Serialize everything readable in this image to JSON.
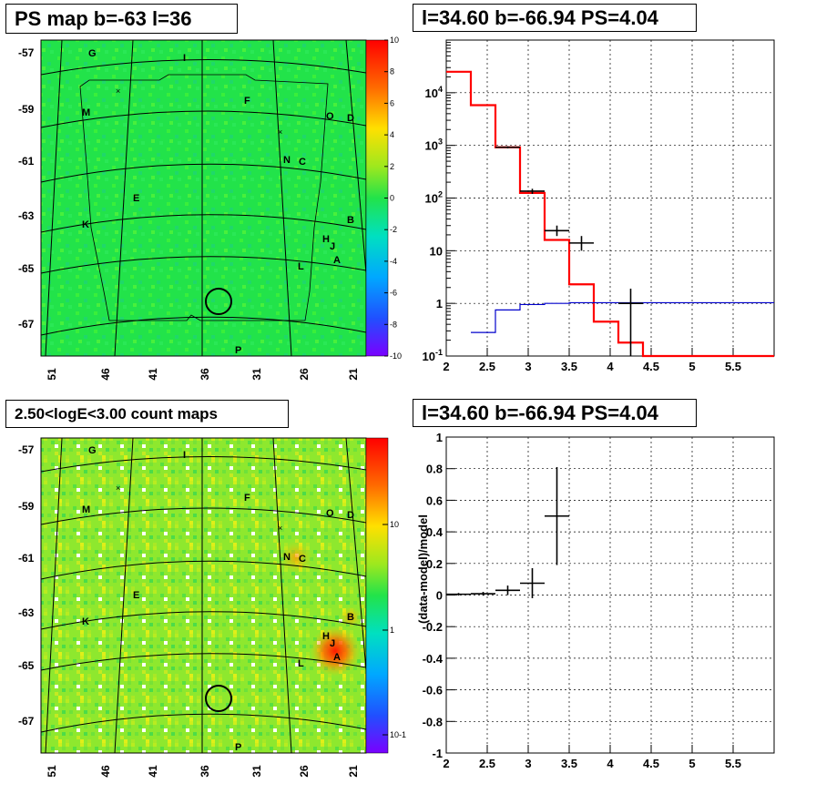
{
  "panels": {
    "ps_map": {
      "title": "PS map b=-63 l=36",
      "colorbar_ticks": [
        "10",
        "8",
        "6",
        "4",
        "2",
        "0",
        "-2",
        "-4",
        "-6",
        "-8",
        "-10"
      ],
      "lat_labels": [
        "-57",
        "-59",
        "-61",
        "-63",
        "-65",
        "-67"
      ],
      "lon_labels": [
        "51",
        "46",
        "41",
        "36",
        "31",
        "26",
        "21"
      ]
    },
    "count_map": {
      "title": "2.50<logE<3.00 count maps",
      "colorbar_ticks": [
        "10",
        "1",
        "10-1"
      ],
      "lat_labels": [
        "-57",
        "-59",
        "-61",
        "-63",
        "-65",
        "-67"
      ],
      "lon_labels": [
        "51",
        "46",
        "41",
        "36",
        "31",
        "26",
        "21"
      ]
    },
    "spectrum": {
      "title": "l=34.60 b=-66.94 PS=4.04"
    },
    "residual": {
      "title": "l=34.60 b=-66.94 PS=4.04",
      "ylabel": "(data-model)/model"
    }
  },
  "source_labels": [
    "G",
    "I",
    "M",
    "F",
    "O",
    "D",
    "N",
    "C",
    "E",
    "K",
    "B",
    "H",
    "J",
    "L",
    "A",
    "P"
  ],
  "chart_data": [
    {
      "type": "heatmap",
      "title": "PS map b=-63 l=36",
      "xlabel": "",
      "ylabel": "",
      "x_ticks": [
        51,
        46,
        41,
        36,
        31,
        26,
        21
      ],
      "y_ticks": [
        -57,
        -59,
        -61,
        -63,
        -65,
        -67
      ],
      "zlim": [
        -10,
        10
      ],
      "marked_position": {
        "l": 34.6,
        "b": -66.94
      }
    },
    {
      "type": "heatmap",
      "title": "2.50<logE<3.00 count maps",
      "xlabel": "",
      "ylabel": "",
      "x_ticks": [
        51,
        46,
        41,
        36,
        31,
        26,
        21
      ],
      "y_ticks": [
        -57,
        -59,
        -61,
        -63,
        -65,
        -67
      ],
      "zscale": "log",
      "marked_position": {
        "l": 34.6,
        "b": -66.94
      }
    },
    {
      "type": "line",
      "title": "l=34.60 b=-66.94 PS=4.04",
      "xlabel": "",
      "ylabel": "",
      "xlim": [
        2,
        6
      ],
      "ylim": [
        0.1,
        100000
      ],
      "yscale": "log",
      "grid": true,
      "x_ticks": [
        "2",
        "2.5",
        "3",
        "3.5",
        "4",
        "4.5",
        "5",
        "5.5"
      ],
      "y_ticks": [
        "10^-1",
        "1",
        "10",
        "10^2",
        "10^3",
        "10^4"
      ],
      "series": [
        {
          "color": "#ff0000",
          "bin_edges": [
            2.0,
            2.3,
            2.6,
            2.9,
            3.2,
            3.5,
            3.8,
            4.1,
            4.4,
            6.0
          ],
          "values": [
            25000,
            5800,
            920,
            125,
            16,
            2.3,
            0.45,
            0.18,
            0.1
          ]
        },
        {
          "color": "#0000cc",
          "bin_edges": [
            2.3,
            2.6,
            2.9,
            3.2,
            3.5,
            6.0
          ],
          "values": [
            0.28,
            0.75,
            0.95,
            1.0,
            1.03
          ]
        },
        {
          "color": "#000000",
          "points": [
            {
              "x": 2.75,
              "xerr": 0.15,
              "y": 920,
              "ylo": 880,
              "yhi": 960
            },
            {
              "x": 3.05,
              "xerr": 0.15,
              "y": 135,
              "ylo": 120,
              "yhi": 150
            },
            {
              "x": 3.35,
              "xerr": 0.15,
              "y": 24,
              "ylo": 19,
              "yhi": 30
            },
            {
              "x": 3.65,
              "xerr": 0.15,
              "y": 14,
              "ylo": 10,
              "yhi": 19
            },
            {
              "x": 4.25,
              "xerr": 0.15,
              "y": 1.0,
              "ylo": 0.1,
              "yhi": 1.9
            }
          ]
        }
      ]
    },
    {
      "type": "scatter",
      "title": "l=34.60 b=-66.94 PS=4.04",
      "xlabel": "",
      "ylabel": "(data-model)/model",
      "xlim": [
        2,
        6
      ],
      "ylim": [
        -1,
        1
      ],
      "grid": true,
      "x_ticks": [
        "2",
        "2.5",
        "3",
        "3.5",
        "4",
        "4.5",
        "5",
        "5.5"
      ],
      "y_ticks": [
        "1",
        "0.8",
        "0.6",
        "0.4",
        "0.2",
        "0",
        "-0.2",
        "-0.4",
        "-0.6",
        "-0.8",
        "-1"
      ],
      "points": [
        {
          "x": 2.15,
          "xerr": 0.15,
          "y": 0.005,
          "yerr": 0.008
        },
        {
          "x": 2.45,
          "xerr": 0.15,
          "y": 0.008,
          "yerr": 0.012
        },
        {
          "x": 2.75,
          "xerr": 0.15,
          "y": 0.03,
          "yerr": 0.03
        },
        {
          "x": 3.05,
          "xerr": 0.15,
          "y": 0.075,
          "yerr": 0.095
        },
        {
          "x": 3.35,
          "xerr": 0.15,
          "y": 0.5,
          "yerr": 0.31
        }
      ]
    }
  ]
}
